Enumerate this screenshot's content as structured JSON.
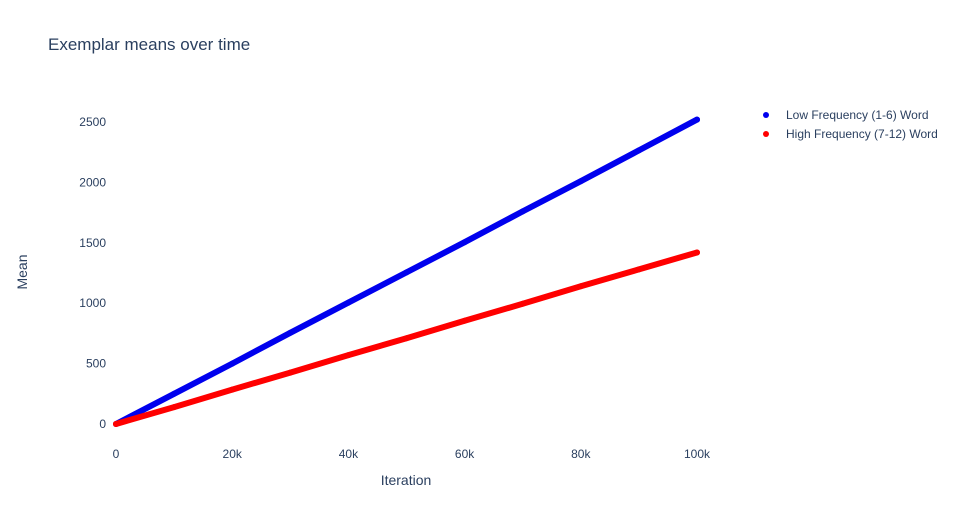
{
  "chart_data": {
    "type": "scatter",
    "title": "Exemplar means over time",
    "xlabel": "Iteration",
    "ylabel": "Mean",
    "xlim": [
      0,
      100000
    ],
    "ylim": [
      0,
      2500
    ],
    "x_ticks": [
      {
        "value": 0,
        "label": "0"
      },
      {
        "value": 20000,
        "label": "20k"
      },
      {
        "value": 40000,
        "label": "40k"
      },
      {
        "value": 60000,
        "label": "60k"
      },
      {
        "value": 80000,
        "label": "80k"
      },
      {
        "value": 100000,
        "label": "100k"
      }
    ],
    "y_ticks": [
      {
        "value": 0,
        "label": "0"
      },
      {
        "value": 500,
        "label": "500"
      },
      {
        "value": 1000,
        "label": "1000"
      },
      {
        "value": 1500,
        "label": "1500"
      },
      {
        "value": 2000,
        "label": "2000"
      },
      {
        "value": 2500,
        "label": "2500"
      }
    ],
    "grid": false,
    "legend_position": "top-right",
    "series": [
      {
        "name": "Low Frequency (1-6) Word",
        "color": "#0000ee",
        "x": [
          0,
          10000,
          20000,
          30000,
          40000,
          50000,
          60000,
          70000,
          80000,
          90000,
          100000
        ],
        "y": [
          0,
          250,
          500,
          755,
          1005,
          1255,
          1505,
          1760,
          2010,
          2265,
          2520
        ]
      },
      {
        "name": "High Frequency (7-12) Word",
        "color": "#ff0000",
        "x": [
          0,
          10000,
          20000,
          30000,
          40000,
          50000,
          60000,
          70000,
          80000,
          90000,
          100000
        ],
        "y": [
          0,
          140,
          285,
          425,
          570,
          710,
          855,
          995,
          1140,
          1280,
          1420
        ]
      }
    ]
  }
}
